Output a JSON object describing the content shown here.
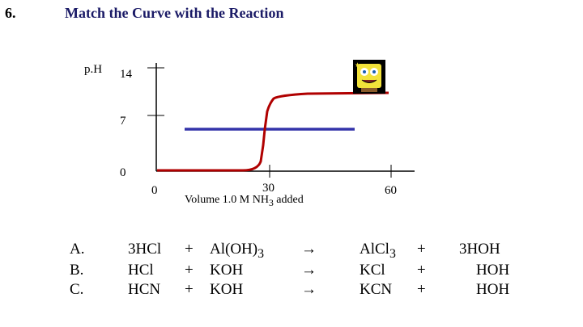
{
  "question": {
    "number": "6.",
    "title": "Match the Curve with the Reaction"
  },
  "graph": {
    "y_label": "p.H",
    "y_ticks": [
      "14",
      "7",
      "0"
    ],
    "x_ticks": [
      "0",
      "30",
      "60"
    ],
    "x_label_prefix": "Volume 1.0 M NH",
    "x_label_sub": "3",
    "x_label_suffix": " added",
    "curve_color": "#b00000",
    "line_color": "#3333aa",
    "sponge_icon": "spongebob-sticker-icon"
  },
  "reactions": [
    {
      "letter": "A.",
      "reactant1": "3HCl",
      "plus1": "+",
      "reactant2": "Al(OH)",
      "reactant2_sub": "3",
      "arrow": "→",
      "product1": "AlCl",
      "product1_sub": "3",
      "plus2": "+",
      "product2": "3HOH"
    },
    {
      "letter": "B.",
      "reactant1": "HCl",
      "plus1": "+",
      "reactant2": "KOH",
      "reactant2_sub": "",
      "arrow": "→",
      "product1": "KCl",
      "product1_sub": "",
      "plus2": "+",
      "product2": "HOH"
    },
    {
      "letter": "C.",
      "reactant1": "HCN",
      "plus1": "+",
      "reactant2": "KOH",
      "reactant2_sub": "",
      "arrow": "→",
      "product1": "KCN",
      "product1_sub": "",
      "plus2": "+",
      "product2": "HOH"
    }
  ]
}
